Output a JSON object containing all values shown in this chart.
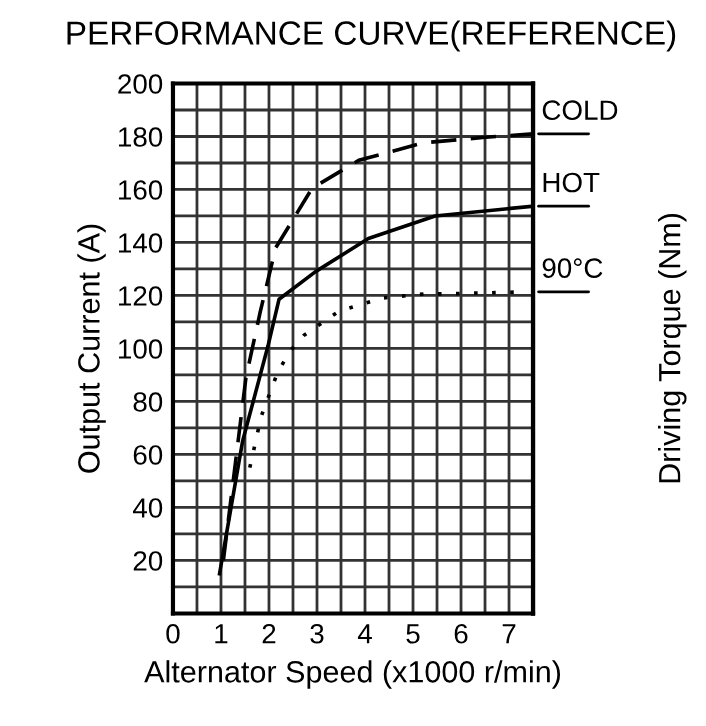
{
  "chart_data": {
    "type": "line",
    "title": "PERFORMANCE CURVE(REFERENCE)",
    "xlabel": "Alternator Speed (x1000 r/min)",
    "ylabel": "Output Current (A)",
    "y2label": "Driving Torque (Nm)",
    "xlim": [
      0,
      7.5
    ],
    "xticks": [
      0,
      {
        "value": 0.5,
        "label": null
      },
      1,
      {
        "value": 1.5,
        "label": null
      },
      2,
      {
        "value": 2.5,
        "label": null
      },
      3,
      {
        "value": 3.5,
        "label": null
      },
      4,
      {
        "value": 4.5,
        "label": null
      },
      5,
      {
        "value": 5.5,
        "label": null
      },
      6,
      {
        "value": 6.5,
        "label": null
      },
      7,
      {
        "value": 7.5,
        "label": null
      }
    ],
    "ylim": [
      0,
      200
    ],
    "yticks": [
      {
        "value": 0,
        "label": null
      },
      {
        "value": 10,
        "label": null
      },
      20,
      {
        "value": 30,
        "label": null
      },
      40,
      {
        "value": 50,
        "label": null
      },
      60,
      {
        "value": 70,
        "label": null
      },
      80,
      {
        "value": 90,
        "label": null
      },
      100,
      {
        "value": 110,
        "label": null
      },
      120,
      {
        "value": 130,
        "label": null
      },
      140,
      {
        "value": 150,
        "label": null
      },
      160,
      {
        "value": 170,
        "label": null
      },
      180,
      {
        "value": 190,
        "label": null
      },
      200
    ],
    "grid": true,
    "legend": false,
    "marker": "none",
    "series": [
      {
        "name": "COLD",
        "color": "#000000",
        "line_style": "dashed",
        "x": [
          1.05,
          1.52,
          1.82,
          2.14,
          2.9,
          3.87,
          5.21,
          6.45,
          7.5
        ],
        "values": [
          20,
          89,
          114,
          138,
          160.5,
          171,
          177.6,
          179.6,
          181
        ]
      },
      {
        "name": "HOT",
        "color": "#000000",
        "line_style": "solid",
        "x": [
          0.97,
          1.45,
          1.98,
          2.21,
          2.97,
          4.07,
          5.46,
          7.5
        ],
        "values": [
          15,
          65,
          101,
          118.6,
          129,
          141.5,
          150,
          153.7
        ]
      },
      {
        "name": "90°C",
        "color": "#000000",
        "line_style": "dotted",
        "x": [
          1.6,
          1.84,
          2.18,
          2.44,
          2.73,
          3.45,
          4.35,
          5.25,
          5.66,
          7.39
        ],
        "values": [
          55,
          74.5,
          91,
          99,
          105,
          114,
          119,
          120.6,
          120.6,
          121.4
        ]
      }
    ]
  }
}
